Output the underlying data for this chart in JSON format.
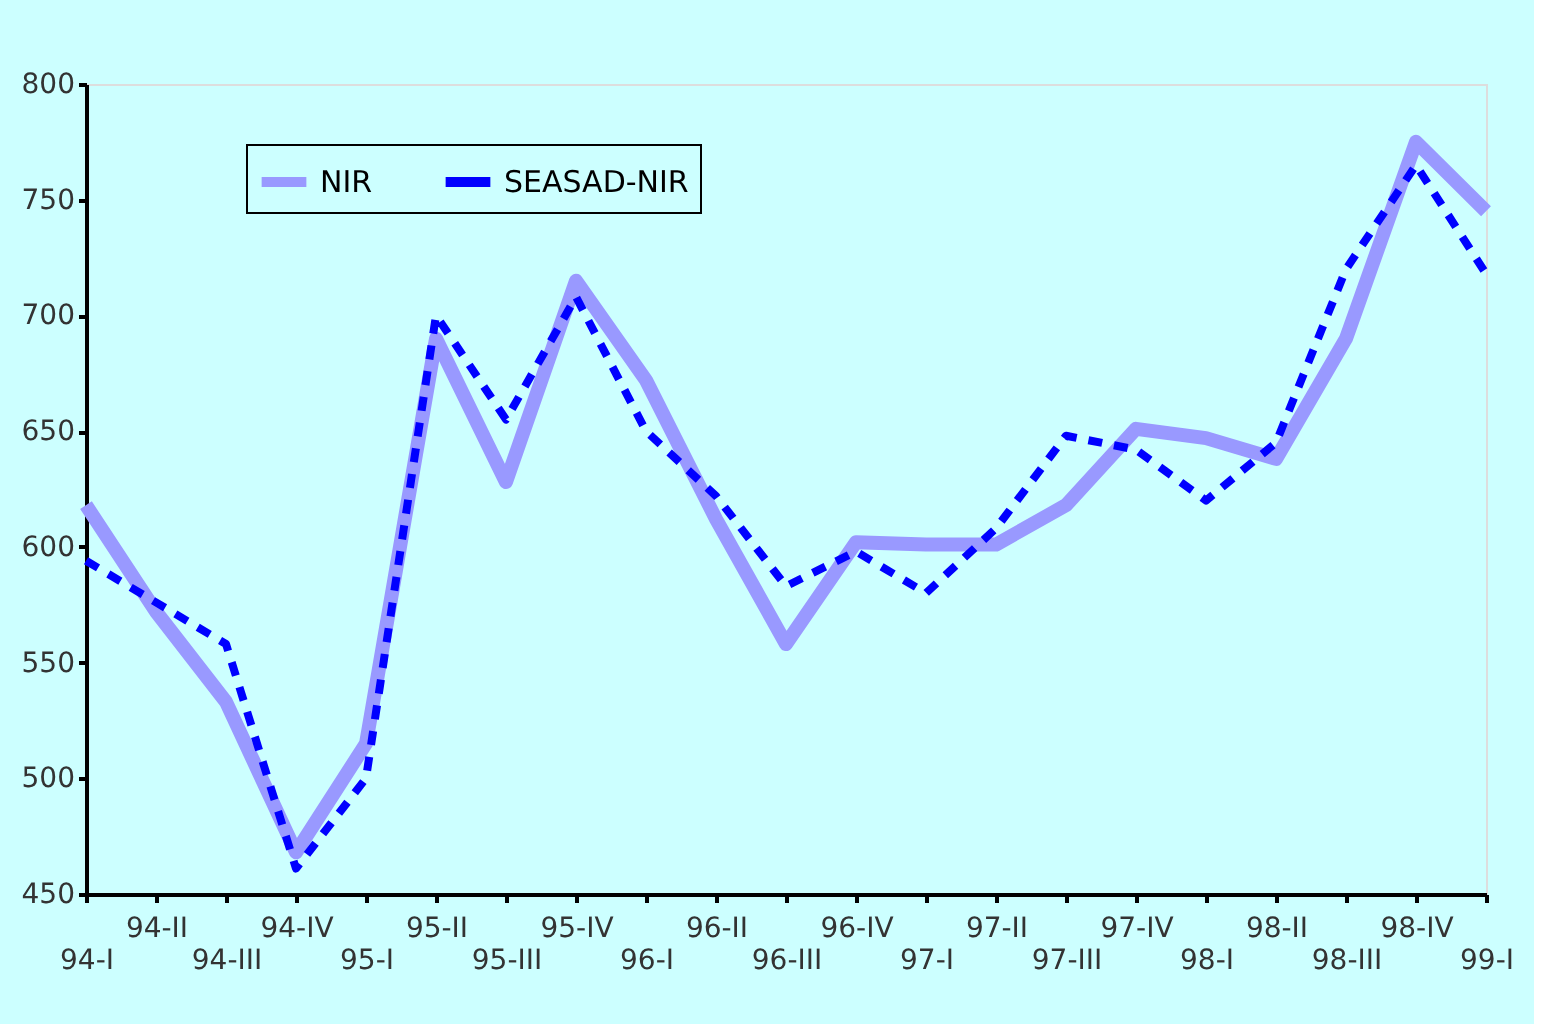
{
  "chart_data": {
    "type": "line",
    "categories": [
      "94-I",
      "94-II",
      "94-III",
      "94-IV",
      "95-I",
      "95-II",
      "95-III",
      "95-IV",
      "96-I",
      "96-II",
      "96-III",
      "96-IV",
      "97-I",
      "97-II",
      "97-III",
      "97-IV",
      "98-I",
      "98-II",
      "98-III",
      "98-IV",
      "99-I"
    ],
    "series": [
      {
        "name": "NIR",
        "color": "#9999ff",
        "line_style": "solid",
        "values": [
          618,
          572,
          533,
          468,
          515,
          690,
          628,
          715,
          672,
          612,
          558,
          602,
          601,
          601,
          618,
          651,
          647,
          638,
          690,
          775,
          745
        ]
      },
      {
        "name": "SEASAD-NIR",
        "color": "#0000ff",
        "line_style": "dashed",
        "values": [
          594,
          576,
          558,
          461,
          500,
          700,
          655,
          708,
          650,
          622,
          583,
          598,
          580,
          608,
          648,
          642,
          620,
          645,
          720,
          765,
          718
        ]
      }
    ],
    "ylim": [
      450,
      800
    ],
    "yticks": [
      450,
      500,
      550,
      600,
      650,
      700,
      750,
      800
    ],
    "grid": false,
    "legend": "top left",
    "marker": "none"
  }
}
